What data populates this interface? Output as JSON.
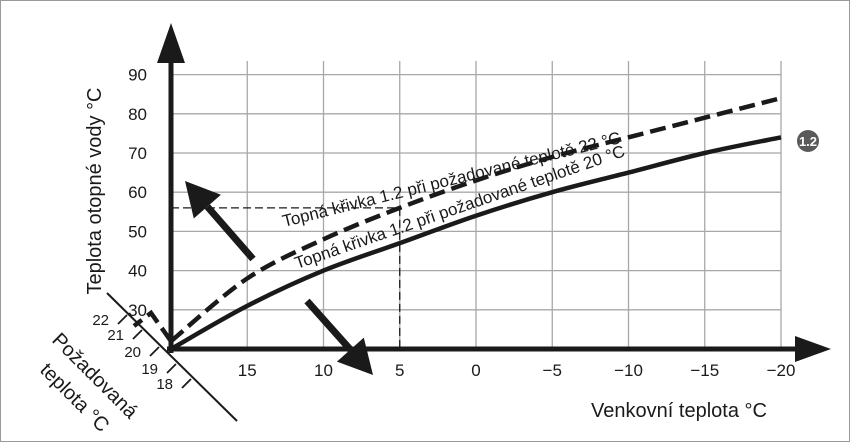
{
  "chart_data": {
    "type": "line",
    "xlabel": "Venkovní teplota °C",
    "ylabel": "Teplota otopné vody °C",
    "x_ticks": [
      "15",
      "10",
      "5",
      "0",
      "−5",
      "−10",
      "−15",
      "−20"
    ],
    "x_tick_values": [
      15,
      10,
      5,
      0,
      -5,
      -10,
      -15,
      -20
    ],
    "y_ticks": [
      "30",
      "40",
      "50",
      "60",
      "70",
      "80",
      "90"
    ],
    "y_tick_values": [
      30,
      40,
      50,
      60,
      70,
      80,
      90
    ],
    "xlim": [
      20,
      -20
    ],
    "ylim": [
      20,
      100
    ],
    "grid": true,
    "series": [
      {
        "name": "Topná křivka 1.2 při požadované teplotě 22 °C",
        "style": "dashed",
        "x": [
          20,
          15,
          10,
          5,
          0,
          -5,
          -10,
          -15,
          -20
        ],
        "y": [
          22,
          38,
          48,
          56,
          63,
          69,
          74,
          79,
          84
        ]
      },
      {
        "name": "Topná křivka 1.2 při požadované teplotě 20 °C",
        "style": "solid",
        "x": [
          20,
          15,
          10,
          5,
          0,
          -5,
          -10,
          -15,
          -20
        ],
        "y": [
          20,
          31,
          40,
          47,
          54,
          60,
          65,
          70,
          74
        ]
      }
    ],
    "badge": "1.2",
    "reference": {
      "x": 5,
      "y": 56
    },
    "setpoint_axis": {
      "label_line1": "Požadovaná",
      "label_line2": "teplota °C",
      "ticks": [
        "22",
        "21",
        "20",
        "19",
        "18"
      ]
    }
  },
  "colors": {
    "ink": "#1a1a1a",
    "grid": "#a8a8a8",
    "badge_fill": "#5a5a5a",
    "badge_text": "#ffffff",
    "frame": "#9a9a9a"
  }
}
